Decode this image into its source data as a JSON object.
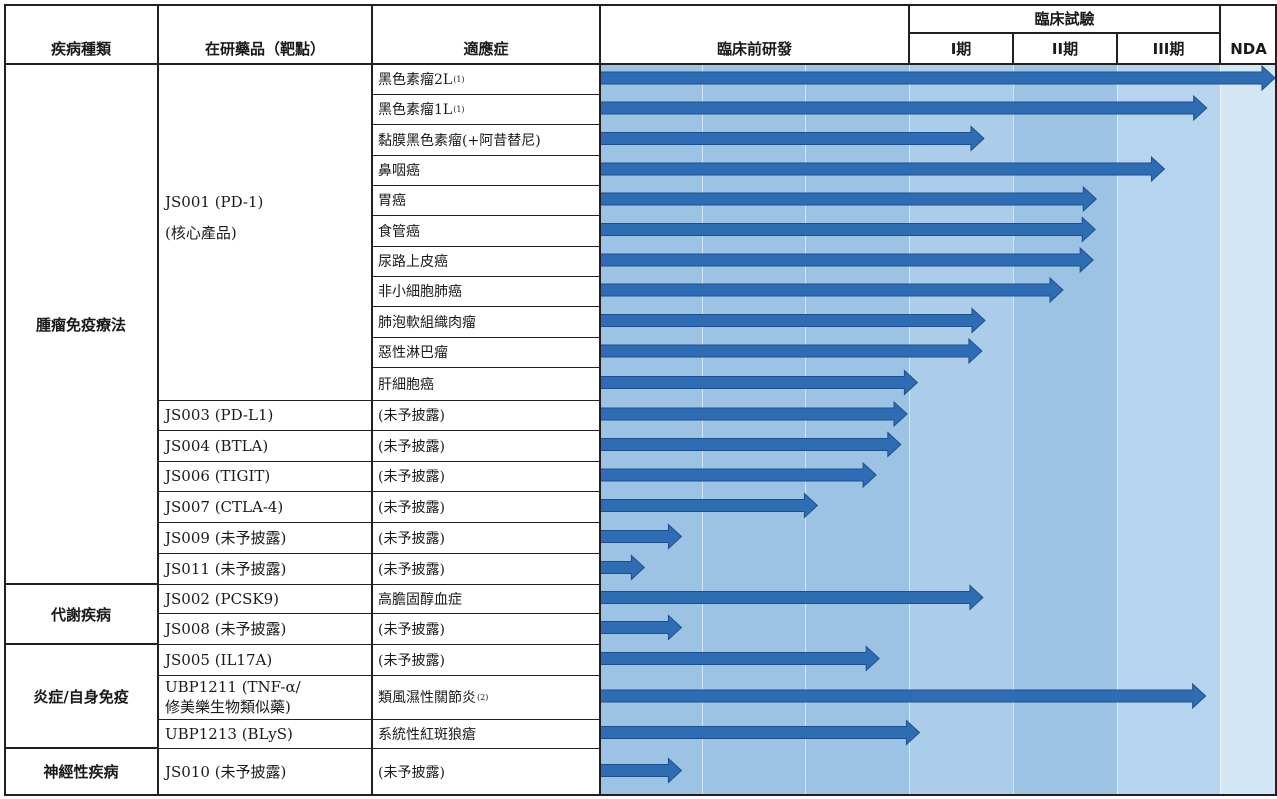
{
  "header": {
    "disease_area": "疾病種類",
    "candidate": "在研藥品（靶點）",
    "indication": "適應症",
    "preclinical": "臨床前研發",
    "clinical": "臨床試驗",
    "phase1": "I期",
    "phase2": "II期",
    "phase3": "III期",
    "nda": "NDA"
  },
  "areas": [
    {
      "name": "腫瘤免疫療法"
    },
    {
      "name": "代謝疾病"
    },
    {
      "name": "炎症/自身免疫"
    },
    {
      "name": "神經性疾病"
    }
  ],
  "drugs": [
    {
      "line1": "JS001 (PD-1)",
      "line2": "(核心產品)"
    },
    {
      "line1": "JS003 (PD-L1)"
    },
    {
      "line1": "JS004 (BTLA)"
    },
    {
      "line1": "JS006 (TIGIT)"
    },
    {
      "line1": "JS007 (CTLA-4)"
    },
    {
      "line1": "JS009 (未予披露)"
    },
    {
      "line1": "JS011 (未予披露)"
    },
    {
      "line1": "JS002 (PCSK9)"
    },
    {
      "line1": "JS008 (未予披露)"
    },
    {
      "line1": "JS005 (IL17A)"
    },
    {
      "line1": "UBP1211 (TNF-α/",
      "line2": "修美樂生物類似藥)"
    },
    {
      "line1": "UBP1213 (BLyS)"
    },
    {
      "line1": "JS010 (未予披露)"
    }
  ],
  "indications": [
    {
      "text": "黑色素瘤2L",
      "note": "(1)"
    },
    {
      "text": "黑色素瘤1L",
      "note": "(1)"
    },
    {
      "text": "黏膜黑色素瘤(+阿昔替尼)"
    },
    {
      "text": "鼻咽癌"
    },
    {
      "text": "胃癌"
    },
    {
      "text": "食管癌"
    },
    {
      "text": "尿路上皮癌"
    },
    {
      "text": "非小細胞肺癌"
    },
    {
      "text": "肺泡軟組織肉瘤"
    },
    {
      "text": "惡性淋巴瘤"
    },
    {
      "text": "肝細胞癌"
    },
    {
      "text": "(未予披露)"
    },
    {
      "text": "(未予披露)"
    },
    {
      "text": "(未予披露)"
    },
    {
      "text": "(未予披露)"
    },
    {
      "text": "(未予披露)"
    },
    {
      "text": "(未予披露)"
    },
    {
      "text": "高膽固醇血症"
    },
    {
      "text": "(未予披露)"
    },
    {
      "text": "(未予披露)"
    },
    {
      "text": "類風濕性關節炎",
      "note": "(2)"
    },
    {
      "text": "系統性紅斑狼瘡"
    },
    {
      "text": "(未予披露)"
    }
  ],
  "progress": [
    {
      "stage": "NDA",
      "fraction": 1.0
    },
    {
      "stage": "III期",
      "fraction": 0.89
    },
    {
      "stage": "I期",
      "fraction": 0.74
    },
    {
      "stage": "III期",
      "fraction": 0.48
    },
    {
      "stage": "II期",
      "fraction": 0.82
    },
    {
      "stage": "II期",
      "fraction": 0.81
    },
    {
      "stage": "II期",
      "fraction": 0.79
    },
    {
      "stage": "II期",
      "fraction": 0.5
    },
    {
      "stage": "I期",
      "fraction": 0.75
    },
    {
      "stage": "I期",
      "fraction": 0.72
    },
    {
      "stage": "I期",
      "fraction": 0.1
    },
    {
      "stage": "臨床前研發",
      "fraction": 1.0
    },
    {
      "stage": "臨床前研發",
      "fraction": 0.98
    },
    {
      "stage": "臨床前研發",
      "fraction": 0.9
    },
    {
      "stage": "臨床前研發",
      "fraction": 0.71
    },
    {
      "stage": "臨床前研發",
      "fraction": 0.27
    },
    {
      "stage": "臨床前研發",
      "fraction": 0.15
    },
    {
      "stage": "I期",
      "fraction": 0.73
    },
    {
      "stage": "臨床前研發",
      "fraction": 0.27
    },
    {
      "stage": "臨床前研發",
      "fraction": 0.91
    },
    {
      "stage": "III期",
      "fraction": 0.88
    },
    {
      "stage": "I期",
      "fraction": 0.12
    },
    {
      "stage": "臨床前研發",
      "fraction": 0.27
    }
  ],
  "colors": {
    "preclinical": "#9cc3e3",
    "phase1": "#abcde9",
    "phase2": "#9cc3e3",
    "phase3": "#b6d4ee",
    "nda": "#d3e6f5",
    "arrow": "#2e6db4",
    "arrow_edge": "#1f4e8c",
    "grid": "#231f20"
  }
}
